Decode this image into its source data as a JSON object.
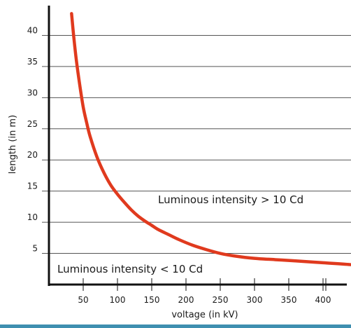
{
  "chart_data": {
    "type": "line",
    "xlabel": "voltage (in kV)",
    "ylabel": "length (in m)",
    "x_ticks": [
      50,
      100,
      150,
      200,
      250,
      300,
      350,
      400
    ],
    "y_ticks": [
      5,
      10,
      15,
      20,
      25,
      30,
      35,
      40
    ],
    "xlim": [
      0,
      500
    ],
    "ylim": [
      0,
      45
    ],
    "grid": "horizontal",
    "series": [
      {
        "color": "#e03a1e",
        "points": [
          [
            33,
            43.5
          ],
          [
            36,
            40
          ],
          [
            40,
            36
          ],
          [
            45,
            32
          ],
          [
            50,
            28.5
          ],
          [
            55,
            26
          ],
          [
            60,
            23.8
          ],
          [
            70,
            20.5
          ],
          [
            80,
            18
          ],
          [
            90,
            16
          ],
          [
            100,
            14.5
          ],
          [
            110,
            13.2
          ],
          [
            120,
            12
          ],
          [
            130,
            11
          ],
          [
            140,
            10.2
          ],
          [
            150,
            9.5
          ],
          [
            160,
            8.8
          ],
          [
            175,
            8
          ],
          [
            190,
            7.2
          ],
          [
            210,
            6.3
          ],
          [
            230,
            5.6
          ],
          [
            250,
            5
          ],
          [
            270,
            4.6
          ],
          [
            300,
            4.2
          ],
          [
            330,
            4
          ],
          [
            360,
            3.8
          ],
          [
            400,
            3.5
          ],
          [
            440,
            3.2
          ],
          [
            480,
            2.8
          ],
          [
            500,
            2.6
          ]
        ]
      }
    ],
    "annotations": [
      {
        "text": "Luminous intensity > 10 Cd"
      },
      {
        "text": "Luminous intensity < 10 Cd"
      }
    ]
  },
  "colors": {
    "axis": "#111111",
    "grid": "#555555",
    "curve": "#e03a1e",
    "bottom_band": "#3f8fb0"
  }
}
